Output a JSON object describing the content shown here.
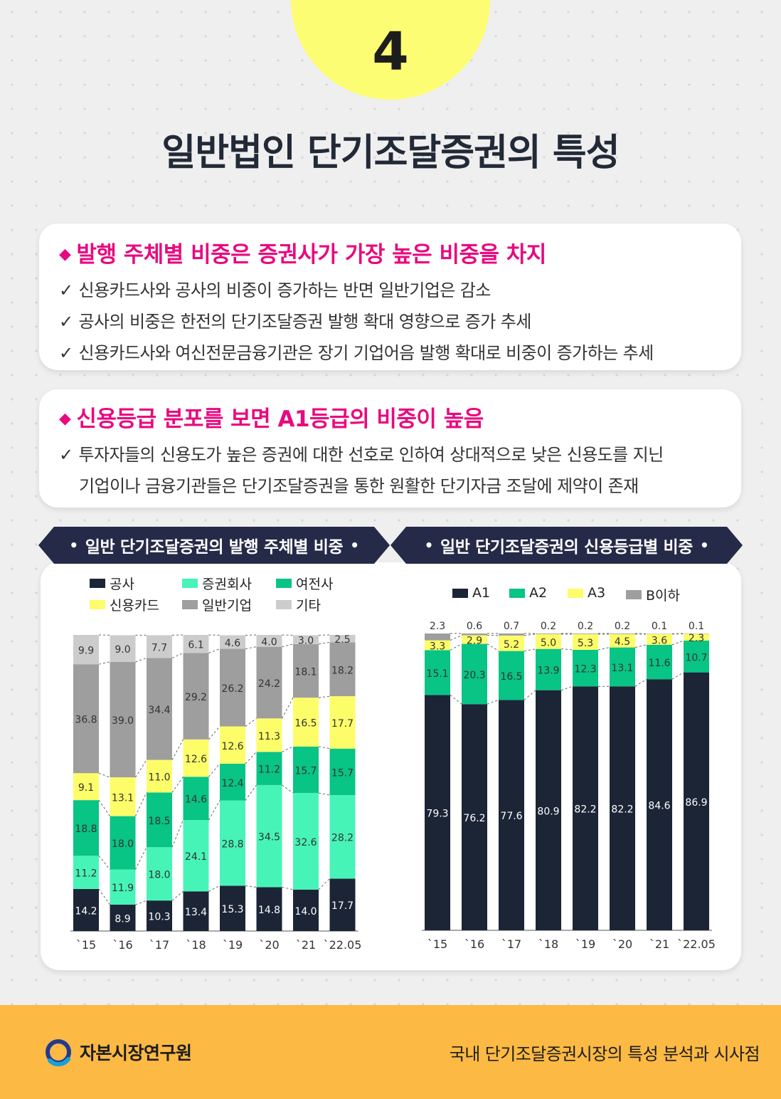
{
  "badge_number": "4",
  "title": "일반법인 단기조달증권의 특성",
  "section1": {
    "heading": "발행 주체별 비중은 증권사가 가장 높은 비중을 차지",
    "bullets": [
      "신용카드사와 공사의 비중이 증가하는 반면 일반기업은 감소",
      "공사의 비중은 한전의 단기조달증권 발행 확대 영향으로 증가 추세",
      "신용카드사와 여신전문금융기관은 장기 기업어음 발행 확대로 비중이 증가하는 추세"
    ]
  },
  "section2": {
    "heading": "신용등급 분포를 보면 A1등급의 비중이 높음",
    "bullets": [
      "투자자들의 신용도가 높은 증권에 대한 선호로 인하여 상대적으로 낮은 신용도를 지닌",
      "기업이나 금융기관들은 단기조달증권을 통한 원활한 단기자금 조달에 제약이 존재"
    ]
  },
  "chart_data": [
    {
      "type": "bar",
      "stacked": true,
      "title": "일반 단기조달증권의 발행 주체별 비중",
      "categories": [
        "`15",
        "`16",
        "`17",
        "`18",
        "`19",
        "`20",
        "`21",
        "`22.05"
      ],
      "ylim": [
        0,
        100
      ],
      "legend_placement": "top",
      "series": [
        {
          "name": "공사",
          "color": "#1b2536",
          "values": [
            14.2,
            8.9,
            10.3,
            13.4,
            15.3,
            14.8,
            14.0,
            17.7
          ]
        },
        {
          "name": "증권회사",
          "color": "#47f4b8",
          "values": [
            11.2,
            11.9,
            18.0,
            24.1,
            28.8,
            34.5,
            32.6,
            28.2
          ]
        },
        {
          "name": "여전사",
          "color": "#08c485",
          "values": [
            18.8,
            18.0,
            18.5,
            14.6,
            12.4,
            11.2,
            15.7,
            15.7
          ]
        },
        {
          "name": "신용카드",
          "color": "#fdfd6a",
          "values": [
            9.1,
            13.1,
            11.0,
            12.6,
            12.6,
            11.3,
            16.5,
            17.7
          ]
        },
        {
          "name": "일반기업",
          "color": "#9e9e9e",
          "values": [
            36.8,
            39.0,
            34.4,
            29.2,
            26.2,
            24.2,
            18.1,
            18.2
          ]
        },
        {
          "name": "기타",
          "color": "#cccccc",
          "values": [
            9.9,
            9.0,
            7.7,
            6.1,
            4.6,
            4.0,
            3.0,
            2.5
          ]
        }
      ]
    },
    {
      "type": "bar",
      "stacked": true,
      "title": "일반 단기조달증권의 신용등급별 비중",
      "categories": [
        "`15",
        "`16",
        "`17",
        "`18",
        "`19",
        "`20",
        "`21",
        "`22.05"
      ],
      "ylim": [
        0,
        100
      ],
      "legend_placement": "top",
      "series": [
        {
          "name": "A1",
          "color": "#1b2536",
          "values": [
            79.3,
            76.2,
            77.6,
            80.9,
            82.2,
            82.2,
            84.6,
            86.9
          ]
        },
        {
          "name": "A2",
          "color": "#08c485",
          "values": [
            15.1,
            20.3,
            16.5,
            13.9,
            12.3,
            13.1,
            11.6,
            10.7
          ]
        },
        {
          "name": "A3",
          "color": "#fdfd6a",
          "values": [
            3.3,
            2.9,
            5.2,
            5.0,
            5.3,
            4.5,
            3.6,
            2.3
          ]
        },
        {
          "name": "B이하",
          "color": "#9e9e9e",
          "values": [
            2.3,
            0.6,
            0.7,
            0.2,
            0.2,
            0.2,
            0.1,
            0.1
          ]
        }
      ]
    }
  ],
  "footer": {
    "logo_text": "자본시장연구원",
    "publication": "국내 단기조달증권시장의 특성 분석과 시사점"
  },
  "colors": {
    "accent_pink": "#e8097f",
    "badge_yellow": "#fdfd73",
    "banner_navy": "#252a48",
    "footer_orange": "#fcb943"
  }
}
